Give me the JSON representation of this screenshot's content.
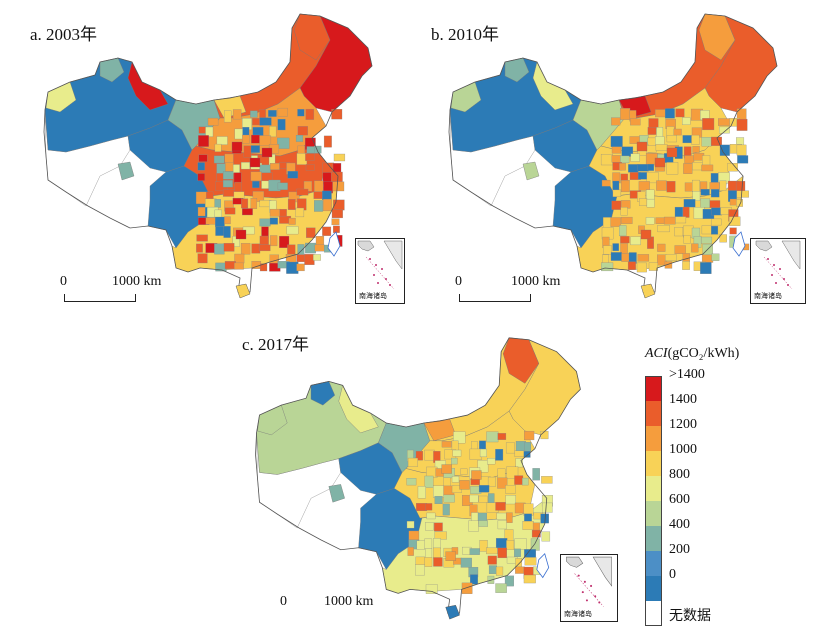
{
  "panels": [
    {
      "title": "a. 2003年",
      "year": 2003
    },
    {
      "title": "b. 2010年",
      "year": 2010
    },
    {
      "title": "c. 2017年",
      "year": 2017
    }
  ],
  "scalebar": {
    "zero": "0",
    "distance": "1000 km"
  },
  "inset": {
    "label": "南海诸岛"
  },
  "legend": {
    "title_var": "ACI",
    "title_unit": "(gCO₂/kWh)",
    "items": [
      {
        "label": ">1400",
        "color": "#d7191c"
      },
      {
        "label": "1400",
        "color": "#ea5d2b"
      },
      {
        "label": "1200",
        "color": "#f59d3d"
      },
      {
        "label": "1000",
        "color": "#f8d257"
      },
      {
        "label": "800",
        "color": "#e8ec8c"
      },
      {
        "label": "600",
        "color": "#b9d596"
      },
      {
        "label": "400",
        "color": "#80b3a6"
      },
      {
        "label": "200",
        "color": "#4c8fc6"
      },
      {
        "label": "0",
        "color": "#2c7bb6"
      },
      {
        "label": "无数据",
        "color": "#ffffff"
      }
    ]
  }
}
